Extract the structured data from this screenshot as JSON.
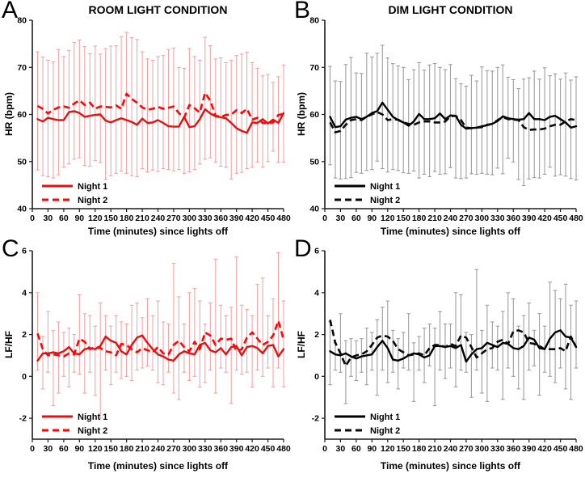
{
  "figure": {
    "background": "#ffffff"
  },
  "chart_data": [
    {
      "panel_label": "A",
      "type": "line",
      "title": "ROOM LIGHT CONDITION",
      "xlabel": "Time (minutes) since lights off",
      "ylabel": "HR (bpm)",
      "xlim": [
        0,
        480
      ],
      "ylim": [
        40,
        80
      ],
      "xticks": [
        0,
        30,
        60,
        90,
        120,
        150,
        180,
        210,
        240,
        270,
        300,
        330,
        360,
        390,
        420,
        450,
        480
      ],
      "yticks": [
        40,
        50,
        60,
        70,
        80
      ],
      "legend": [
        {
          "label": "Night 1",
          "style": "solid"
        },
        {
          "label": "Night 2",
          "style": "dashed"
        }
      ],
      "legend_position": "bottom-left",
      "grid": false,
      "colors": {
        "night1": "#e01313",
        "night2": "#ff0606",
        "error_bars": "#f3a5a5"
      },
      "x": [
        10,
        20,
        30,
        40,
        50,
        60,
        70,
        80,
        90,
        100,
        110,
        120,
        130,
        140,
        150,
        160,
        170,
        180,
        190,
        200,
        210,
        220,
        230,
        240,
        250,
        260,
        270,
        280,
        290,
        300,
        310,
        320,
        330,
        340,
        350,
        360,
        370,
        380,
        390,
        400,
        410,
        420,
        430,
        440,
        450,
        460,
        470,
        480
      ],
      "series": [
        {
          "name": "Night 1",
          "values": [
            59.0,
            58.5,
            59.3,
            59.0,
            58.8,
            58.8,
            60.5,
            60.7,
            60.3,
            59.5,
            59.7,
            59.9,
            60.0,
            58.7,
            58.3,
            58.8,
            59.2,
            58.8,
            58.4,
            57.8,
            59.1,
            58.2,
            58.3,
            58.8,
            58.2,
            57.5,
            57.4,
            57.4,
            59.5,
            57.3,
            57.5,
            59.0,
            61.1,
            60.2,
            59.6,
            59.4,
            59.2,
            58.2,
            57.1,
            56.5,
            56.1,
            58.3,
            58.2,
            59.0,
            58.1,
            58.9,
            58.2,
            60.3
          ]
        },
        {
          "name": "Night 2",
          "values": [
            61.8,
            61.2,
            60.2,
            61.0,
            61.5,
            61.7,
            61.4,
            62.3,
            63.0,
            62.0,
            62.5,
            61.2,
            61.7,
            61.6,
            61.5,
            61.9,
            61.2,
            64.4,
            63.3,
            62.5,
            61.5,
            61.0,
            61.2,
            61.6,
            61.2,
            61.4,
            61.7,
            60.3,
            59.3,
            62.0,
            61.3,
            60.4,
            64.6,
            62.9,
            59.7,
            59.5,
            59.9,
            60.0,
            60.9,
            60.3,
            61.2,
            58.9,
            59.3,
            58.2,
            58.2,
            58.3,
            59.9,
            60.1
          ]
        }
      ],
      "error_bar_top": [
        73.3,
        72.2,
        71.5,
        71.2,
        73.8,
        72.3,
        73.6,
        75.3,
        75.8,
        74.4,
        72.9,
        74.5,
        72.8,
        74.0,
        74.5,
        74.6,
        76.5,
        77.4,
        76.3,
        75.9,
        73.3,
        71.8,
        71.5,
        72.3,
        72.5,
        73.8,
        74.1,
        70.0,
        69.8,
        74.0,
        72.3,
        71.5,
        76.4,
        74.6,
        71.8,
        72.0,
        71.0,
        71.5,
        72.5,
        72.8,
        73.2,
        71.0,
        69.8,
        68.2,
        68.5,
        66.8,
        68.0,
        70.5
      ],
      "error_bar_bottom": [
        48.2,
        47.0,
        46.8,
        46.5,
        47.2,
        48.8,
        49.5,
        50.5,
        50.8,
        49.2,
        49.0,
        50.2,
        49.8,
        46.2,
        47.0,
        47.5,
        48.0,
        47.5,
        47.0,
        46.8,
        48.5,
        47.8,
        48.2,
        47.9,
        48.5,
        48.3,
        48.0,
        48.3,
        47.5,
        47.8,
        48.3,
        49.5,
        50.5,
        50.8,
        49.9,
        49.0,
        48.8,
        46.3,
        47.5,
        47.7,
        48.5,
        48.8,
        49.9,
        48.8,
        50.0,
        52.2,
        49.8,
        49.9
      ]
    },
    {
      "panel_label": "B",
      "type": "line",
      "title": "DIM LIGHT CONDITION",
      "xlabel": "Time (minutes) since lights off",
      "ylabel": "HR (bpm)",
      "xlim": [
        0,
        480
      ],
      "ylim": [
        40,
        80
      ],
      "xticks": [
        0,
        30,
        60,
        90,
        120,
        150,
        180,
        210,
        240,
        270,
        300,
        330,
        360,
        390,
        420,
        450,
        480
      ],
      "yticks": [
        40,
        50,
        60,
        70,
        80
      ],
      "legend": [
        {
          "label": "Night 1",
          "style": "solid"
        },
        {
          "label": "Night 2",
          "style": "dashed"
        }
      ],
      "legend_position": "bottom-left",
      "grid": false,
      "colors": {
        "night1": "#000000",
        "night2": "#0a0a0a",
        "error_bars": "#9e9e9e"
      },
      "x": [
        10,
        20,
        30,
        40,
        50,
        60,
        70,
        80,
        90,
        100,
        110,
        120,
        130,
        140,
        150,
        160,
        170,
        180,
        190,
        200,
        210,
        220,
        230,
        240,
        250,
        260,
        270,
        280,
        290,
        300,
        310,
        320,
        330,
        340,
        350,
        360,
        370,
        380,
        390,
        400,
        410,
        420,
        430,
        440,
        450,
        460,
        470,
        480
      ],
      "series": [
        {
          "name": "Night 1",
          "values": [
            59.5,
            57.3,
            57.5,
            58.9,
            59.3,
            59.5,
            59.0,
            59.5,
            60.3,
            60.7,
            62.5,
            61.0,
            59.5,
            58.8,
            58.3,
            57.6,
            58.5,
            60.1,
            59.0,
            59.0,
            59.2,
            60.2,
            59.0,
            59.8,
            59.7,
            57.8,
            57.0,
            57.1,
            57.2,
            57.5,
            57.7,
            58.0,
            58.6,
            59.6,
            59.2,
            59.0,
            58.9,
            59.0,
            60.3,
            59.0,
            59.0,
            58.8,
            59.5,
            59.7,
            59.0,
            58.3,
            57.2,
            57.5
          ]
        },
        {
          "name": "Night 2",
          "values": [
            58.3,
            56.2,
            56.5,
            57.8,
            58.8,
            59.0,
            58.8,
            59.5,
            60.0,
            60.5,
            60.0,
            58.8,
            59.0,
            58.9,
            58.3,
            58.0,
            57.8,
            58.3,
            58.5,
            58.5,
            58.3,
            58.3,
            58.5,
            59.6,
            59.7,
            58.8,
            57.2,
            57.1,
            57.2,
            57.3,
            57.8,
            58.0,
            58.8,
            59.4,
            59.0,
            58.9,
            58.8,
            57.3,
            56.7,
            56.8,
            56.8,
            57.0,
            57.5,
            57.8,
            57.8,
            58.5,
            59.0,
            58.8
          ]
        }
      ],
      "error_bar_top": [
        70.2,
        67.1,
        67.0,
        70.6,
        72.1,
        68.8,
        68.7,
        73.0,
        72.2,
        73.0,
        74.7,
        72.0,
        70.8,
        70.3,
        70.0,
        67.4,
        69.5,
        71.0,
        69.4,
        70.5,
        70.8,
        70.0,
        69.5,
        70.6,
        67.6,
        66.5,
        66.0,
        68.3,
        67.1,
        70.1,
        69.3,
        69.2,
        70.0,
        70.5,
        67.9,
        67.4,
        65.5,
        67.5,
        67.8,
        69.2,
        67.5,
        69.9,
        68.2,
        68.6,
        67.5,
        68.8,
        67.3,
        68.0
      ],
      "error_bar_bottom": [
        49.3,
        46.5,
        46.3,
        46.4,
        46.6,
        47.7,
        47.5,
        48.1,
        48.3,
        50.1,
        48.5,
        47.8,
        48.3,
        48.1,
        47.6,
        47.5,
        48.0,
        46.5,
        47.3,
        46.8,
        47.9,
        47.3,
        47.4,
        48.7,
        46.5,
        46.4,
        46.5,
        47.4,
        47.3,
        47.5,
        47.3,
        47.2,
        48.6,
        47.4,
        50.7,
        49.9,
        46.2,
        44.9,
        46.3,
        46.6,
        46.5,
        47.3,
        48.8,
        46.9,
        47.2,
        46.9,
        46.4,
        46.1
      ]
    },
    {
      "panel_label": "C",
      "type": "line",
      "title": "",
      "xlabel": "Time (minutes) since lights off",
      "ylabel": "LF/HF",
      "xlim": [
        0,
        480
      ],
      "ylim": [
        -3,
        6
      ],
      "xticks": [
        0,
        30,
        60,
        90,
        120,
        150,
        180,
        210,
        240,
        270,
        300,
        330,
        360,
        390,
        420,
        450,
        480
      ],
      "yticks": [
        -2,
        0,
        2,
        4,
        6
      ],
      "legend": [
        {
          "label": "Night 1",
          "style": "solid"
        },
        {
          "label": "Night 2",
          "style": "dashed"
        }
      ],
      "legend_position": "bottom-left",
      "grid": false,
      "colors": {
        "night1": "#e01313",
        "night2": "#ff0606",
        "error_bars": "#f3a5a5"
      },
      "x": [
        10,
        20,
        30,
        40,
        50,
        60,
        70,
        80,
        90,
        100,
        110,
        120,
        130,
        140,
        150,
        160,
        170,
        180,
        190,
        200,
        210,
        220,
        230,
        240,
        250,
        260,
        270,
        280,
        290,
        300,
        310,
        320,
        330,
        340,
        350,
        360,
        370,
        380,
        390,
        400,
        410,
        420,
        430,
        440,
        450,
        460,
        470,
        480
      ],
      "series": [
        {
          "name": "Night 1",
          "values": [
            0.75,
            1.1,
            1.1,
            1.15,
            1.1,
            1.2,
            1.4,
            1.1,
            1.05,
            1.3,
            1.35,
            1.3,
            1.45,
            1.9,
            1.7,
            1.6,
            1.2,
            1.05,
            1.5,
            1.85,
            1.95,
            1.6,
            1.3,
            1.05,
            0.95,
            0.8,
            0.75,
            1.05,
            1.2,
            1.1,
            1.05,
            1.5,
            1.6,
            1.25,
            1.15,
            1.35,
            1.05,
            1.4,
            1.45,
            1.0,
            1.4,
            1.45,
            1.35,
            1.1,
            1.45,
            1.5,
            0.95,
            1.3
          ]
        },
        {
          "name": "Night 2",
          "values": [
            2.05,
            1.3,
            1.0,
            1.05,
            1.0,
            0.95,
            1.1,
            1.05,
            1.8,
            1.65,
            1.3,
            1.4,
            1.35,
            1.2,
            1.15,
            1.0,
            1.55,
            1.5,
            1.3,
            1.15,
            1.35,
            1.25,
            1.15,
            1.4,
            1.1,
            1.05,
            1.5,
            1.7,
            1.4,
            1.2,
            1.65,
            1.3,
            2.1,
            1.95,
            1.5,
            1.8,
            1.75,
            1.8,
            1.2,
            1.3,
            1.85,
            2.1,
            1.8,
            1.5,
            1.65,
            1.95,
            2.65,
            1.75
          ]
        }
      ],
      "error_bar_top": [
        4.0,
        1.9,
        3.1,
        2.2,
        2.6,
        2.1,
        2.3,
        2.0,
        3.9,
        3.0,
        2.9,
        2.4,
        3.5,
        2.9,
        2.4,
        2.9,
        2.6,
        2.5,
        3.4,
        3.5,
        2.8,
        3.7,
        2.9,
        3.6,
        2.6,
        2.5,
        5.4,
        3.8,
        2.5,
        4.0,
        4.2,
        3.6,
        2.5,
        3.5,
        5.6,
        3.4,
        2.9,
        3.3,
        5.7,
        3.4,
        3.2,
        2.9,
        4.4,
        4.7,
        2.9,
        3.7,
        5.9,
        3.6
      ],
      "error_bar_bottom": [
        0.3,
        -0.6,
        0.2,
        -1.4,
        -0.8,
        0.0,
        -0.5,
        0.2,
        0.1,
        -0.8,
        0.2,
        -0.9,
        -2.0,
        0.3,
        -0.4,
        0.2,
        -0.1,
        0.0,
        -0.2,
        0.3,
        0.4,
        0.5,
        0.3,
        -0.3,
        -0.4,
        0.2,
        -0.8,
        -1.1,
        0.2,
        -0.2,
        0.0,
        -0.5,
        -0.3,
        0.3,
        -0.8,
        0.4,
        0.2,
        -1.3,
        0.3,
        0.1,
        0.2,
        -0.5,
        0.3,
        0.0,
        0.4,
        -0.5,
        0.4,
        -0.5
      ]
    },
    {
      "panel_label": "D",
      "type": "line",
      "title": "",
      "xlabel": "Time (minutes) since lights off",
      "ylabel": "LF/HF",
      "xlim": [
        0,
        480
      ],
      "ylim": [
        -3,
        6
      ],
      "xticks": [
        0,
        30,
        60,
        90,
        120,
        150,
        180,
        210,
        240,
        270,
        300,
        330,
        360,
        390,
        420,
        450,
        480
      ],
      "yticks": [
        -2,
        0,
        2,
        4,
        6
      ],
      "legend": [
        {
          "label": "Night 1",
          "style": "solid"
        },
        {
          "label": "Night 2",
          "style": "dashed"
        }
      ],
      "legend_position": "bottom-left",
      "grid": false,
      "colors": {
        "night1": "#000000",
        "night2": "#0a0a0a",
        "error_bars": "#9e9e9e"
      },
      "x": [
        10,
        20,
        30,
        40,
        50,
        60,
        70,
        80,
        90,
        100,
        110,
        120,
        130,
        140,
        150,
        160,
        170,
        180,
        190,
        200,
        210,
        220,
        230,
        240,
        250,
        260,
        270,
        280,
        290,
        300,
        310,
        320,
        330,
        340,
        350,
        360,
        370,
        380,
        390,
        400,
        410,
        420,
        430,
        440,
        450,
        460,
        470,
        480
      ],
      "series": [
        {
          "name": "Night 1",
          "values": [
            1.2,
            1.05,
            1.0,
            1.1,
            0.95,
            0.85,
            0.95,
            1.0,
            1.05,
            1.4,
            1.7,
            1.35,
            0.8,
            0.75,
            0.85,
            1.0,
            1.1,
            1.05,
            0.9,
            1.0,
            1.45,
            1.45,
            1.4,
            1.45,
            1.35,
            1.5,
            0.7,
            1.05,
            1.3,
            1.35,
            1.6,
            1.5,
            1.4,
            1.6,
            1.55,
            1.35,
            1.3,
            1.45,
            1.85,
            1.75,
            1.35,
            1.3,
            1.8,
            2.1,
            2.2,
            1.9,
            1.85,
            1.4
          ]
        },
        {
          "name": "Night 2",
          "values": [
            2.7,
            1.6,
            1.1,
            0.5,
            0.9,
            1.0,
            1.05,
            1.2,
            1.5,
            1.85,
            1.95,
            1.9,
            1.7,
            1.3,
            1.15,
            1.0,
            1.05,
            1.1,
            1.0,
            1.35,
            1.5,
            1.5,
            1.4,
            1.55,
            1.45,
            1.95,
            1.85,
            1.4,
            0.9,
            1.1,
            1.3,
            1.35,
            1.65,
            1.75,
            1.55,
            2.15,
            2.2,
            2.1,
            1.6,
            1.55,
            1.45,
            1.3,
            1.3,
            1.3,
            1.35,
            1.2,
            1.9,
            1.4
          ]
        }
      ],
      "error_bar_top": [
        2.6,
        1.6,
        3.0,
        1.7,
        1.8,
        1.7,
        1.8,
        2.3,
        2.1,
        2.7,
        3.3,
        3.6,
        2.2,
        1.8,
        2.1,
        3.0,
        1.6,
        1.9,
        2.3,
        2.5,
        2.3,
        3.1,
        2.5,
        2.5,
        4.0,
        3.9,
        2.1,
        2.0,
        5.1,
        2.2,
        3.4,
        2.6,
        2.4,
        3.1,
        4.0,
        3.7,
        2.4,
        2.9,
        3.5,
        2.2,
        3.0,
        2.4,
        4.5,
        4.1,
        3.7,
        4.4,
        3.4,
        3.6
      ],
      "error_bar_bottom": [
        -0.4,
        0.3,
        0.2,
        -1.3,
        0.0,
        -0.2,
        0.2,
        -0.4,
        0.3,
        -0.9,
        0.3,
        -0.3,
        0.2,
        -0.6,
        0.4,
        0.3,
        -1.2,
        0.3,
        -0.3,
        0.5,
        -1.4,
        0.3,
        -0.1,
        0.4,
        -0.5,
        0.3,
        0.2,
        -1.0,
        0.3,
        -0.8,
        -1.2,
        0.4,
        0.3,
        -1.1,
        0.4,
        0.0,
        -0.6,
        -1.1,
        0.3,
        0.5,
        -0.9,
        0.2,
        0.0,
        -0.3,
        0.4,
        -0.6,
        -1.1,
        0.4
      ]
    }
  ]
}
